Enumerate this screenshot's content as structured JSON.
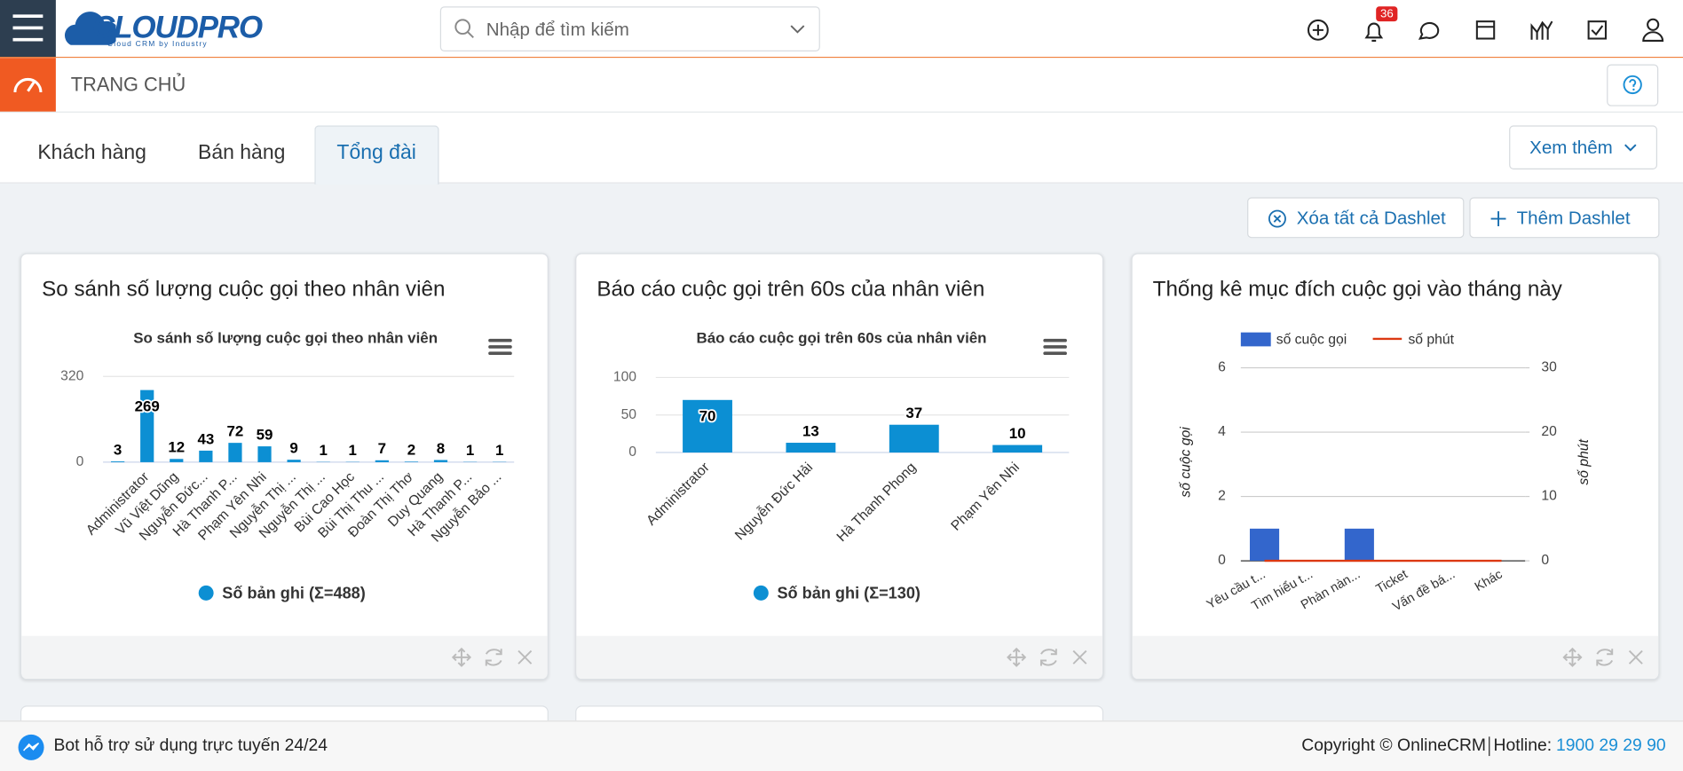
{
  "header": {
    "logo": "CLOUDPRO",
    "logo_tagline": "Cloud CRM by Industry",
    "search_placeholder": "Nhập để tìm kiếm",
    "notification_count": 36
  },
  "page_title": "TRANG CHỦ",
  "tabs": {
    "items": [
      "Khách hàng",
      "Bán hàng",
      "Tổng đài"
    ],
    "active": 2
  },
  "more_button": "Xem thêm",
  "actions": [
    "Xóa tất cả Dashlet",
    "Thêm Dashlet"
  ],
  "dashlets": [
    {
      "title": "So sánh số lượng cuộc gọi theo nhân viên",
      "chart": {
        "type": "bar",
        "title": "So sánh số lượng cuộc gọi theo nhân viên",
        "categories": [
          null,
          "Administrator",
          "Vũ Việt Dũng",
          "Nguyễn Đức...",
          "Hà Thanh P...",
          "Phạm Yên Nhi",
          "Nguyễn Thị ...",
          "Nguyễn Thị ...",
          "Bùi Cao Học",
          "Bùi Thị Thu ...",
          "Đoàn Thị Thơ",
          "Duy Quang",
          "Hà Thanh P...",
          "Nguyễn Bảo ..."
        ],
        "values": [
          3,
          269,
          12,
          43,
          72,
          59,
          9,
          1,
          1,
          7,
          2,
          8,
          1,
          1
        ],
        "color": "#0c8fd3",
        "ylim": [
          0,
          320
        ],
        "yticks": [
          0,
          320
        ],
        "grid": true,
        "legend": "Số bản ghi (Σ=488)"
      }
    },
    {
      "title": "Báo cáo cuộc gọi trên 60s của nhân viên",
      "chart": {
        "type": "bar",
        "title": "Báo cáo cuộc gọi trên 60s của nhân viên",
        "categories": [
          "Administrator",
          "Nguyễn Đức Hải",
          "Hà Thanh Phong",
          "Phạm Yên Nhi"
        ],
        "values": [
          70,
          13,
          37,
          10
        ],
        "color": "#0c8fd3",
        "ylim": [
          0,
          100
        ],
        "yticks": [
          0,
          50,
          100
        ],
        "grid": true,
        "legend": "Số bản ghi (Σ=130)"
      }
    },
    {
      "title": "Thống kê mục đích cuộc gọi vào tháng này",
      "chart": {
        "type": "combo",
        "categories": [
          "Yêu cầu t...",
          "Tìm hiểu t...",
          "Phàn nàn...",
          "Ticket",
          "Vấn đề bá...",
          "Khác"
        ],
        "series": [
          {
            "name": "số cuộc gọi",
            "kind": "bar",
            "color": "#3366cc",
            "values": [
              1,
              0,
              1,
              0,
              0,
              0
            ]
          },
          {
            "name": "số phút",
            "kind": "line",
            "axis": "y2",
            "color": "#dc3912",
            "values": [
              0,
              0,
              0,
              0,
              0,
              0
            ]
          }
        ],
        "ylim": [
          0,
          6
        ],
        "yticks": [
          0,
          2,
          4,
          6
        ],
        "y2lim": [
          0,
          30
        ],
        "y2ticks": [
          0,
          10,
          20,
          30
        ],
        "ylabel": "số cuộc gọi",
        "y2label": "số phút",
        "grid": true
      }
    }
  ],
  "footer": {
    "bot": "Bot hỗ trợ sử dụng trực tuyến 24/24",
    "copyright": "Copyright © OnlineCRM",
    "hotline_label": "Hotline:",
    "hotline": "1900 29 29 90"
  }
}
